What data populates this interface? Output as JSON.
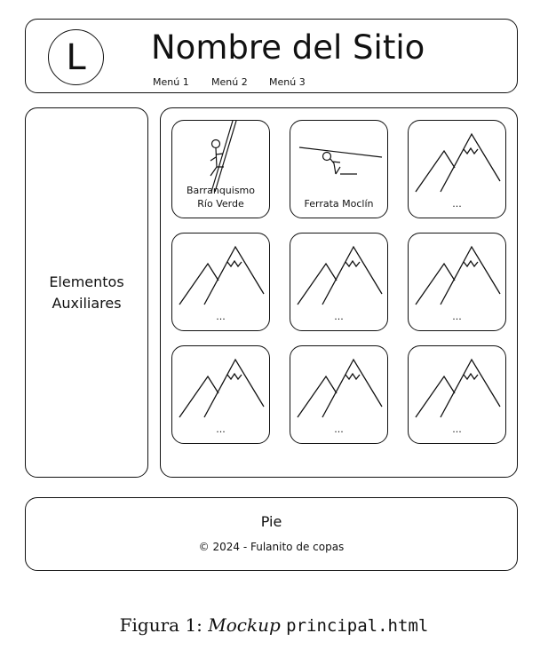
{
  "header": {
    "logo_letter": "L",
    "site_title": "Nombre del Sitio",
    "menu": [
      "Menú 1",
      "Menú 2",
      "Menú 3"
    ]
  },
  "sidebar": {
    "line1": "Elementos",
    "line2": "Auxiliares"
  },
  "grid": {
    "cards": [
      {
        "icon": "climber-icon",
        "caption": [
          "Barranquismo",
          "Río Verde"
        ]
      },
      {
        "icon": "zipline-icon",
        "caption": [
          "Ferrata  Moclín"
        ]
      },
      {
        "icon": "mountain-icon",
        "caption": [
          "..."
        ]
      },
      {
        "icon": "mountain-icon",
        "caption": [
          "..."
        ]
      },
      {
        "icon": "mountain-icon",
        "caption": [
          "..."
        ]
      },
      {
        "icon": "mountain-icon",
        "caption": [
          "..."
        ]
      },
      {
        "icon": "mountain-icon",
        "caption": [
          "..."
        ]
      },
      {
        "icon": "mountain-icon",
        "caption": [
          "..."
        ]
      },
      {
        "icon": "mountain-icon",
        "caption": [
          "..."
        ]
      }
    ]
  },
  "footer": {
    "title": "Pie",
    "copyright": "© 2024 - Fulanito de copas"
  },
  "caption": {
    "prefix": "Figura 1: ",
    "italic": "Mockup",
    "filename": "principal.html"
  }
}
